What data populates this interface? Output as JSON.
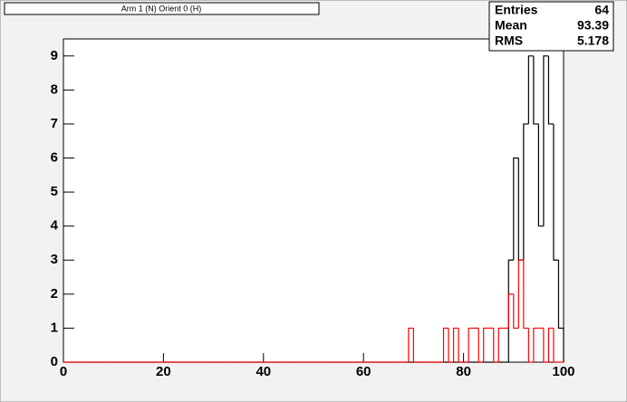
{
  "chart_data": {
    "type": "histogram",
    "title": "Arm 1 (N) Orient 0 (H)",
    "stats": {
      "labels": [
        "Entries",
        "Mean",
        "RMS"
      ],
      "values": [
        64,
        93.39,
        5.178
      ]
    },
    "bins": [
      0,
      1,
      2,
      3,
      4,
      5,
      6,
      7,
      8,
      9,
      10,
      11,
      12,
      13,
      14,
      15,
      16,
      17,
      18,
      19,
      20,
      21,
      22,
      23,
      24,
      25,
      26,
      27,
      28,
      29,
      30,
      31,
      32,
      33,
      34,
      35,
      36,
      37,
      38,
      39,
      40,
      41,
      42,
      43,
      44,
      45,
      46,
      47,
      48,
      49,
      50,
      51,
      52,
      53,
      54,
      55,
      56,
      57,
      58,
      59,
      60,
      61,
      62,
      63,
      64,
      65,
      66,
      67,
      68,
      69,
      70,
      71,
      72,
      73,
      74,
      75,
      76,
      77,
      78,
      79,
      80,
      81,
      82,
      83,
      84,
      85,
      86,
      87,
      88,
      89,
      90,
      91,
      92,
      93,
      94,
      95,
      96,
      97,
      98,
      99,
      100
    ],
    "series": [
      {
        "color": "#000000",
        "values": [
          0,
          0,
          0,
          0,
          0,
          0,
          0,
          0,
          0,
          0,
          0,
          0,
          0,
          0,
          0,
          0,
          0,
          0,
          0,
          0,
          0,
          0,
          0,
          0,
          0,
          0,
          0,
          0,
          0,
          0,
          0,
          0,
          0,
          0,
          0,
          0,
          0,
          0,
          0,
          0,
          0,
          0,
          0,
          0,
          0,
          0,
          0,
          0,
          0,
          0,
          0,
          0,
          0,
          0,
          0,
          0,
          0,
          0,
          0,
          0,
          0,
          0,
          0,
          0,
          0,
          0,
          0,
          0,
          0,
          0,
          0,
          0,
          0,
          0,
          0,
          0,
          0,
          0,
          0,
          0,
          0,
          0,
          0,
          0,
          0,
          0,
          0,
          0,
          0,
          3,
          6,
          3,
          7,
          9,
          7,
          4,
          9,
          7,
          3,
          1
        ]
      },
      {
        "color": "#ff0000",
        "values": [
          0,
          0,
          0,
          0,
          0,
          0,
          0,
          0,
          0,
          0,
          0,
          0,
          0,
          0,
          0,
          0,
          0,
          0,
          0,
          0,
          0,
          0,
          0,
          0,
          0,
          0,
          0,
          0,
          0,
          0,
          0,
          0,
          0,
          0,
          0,
          0,
          0,
          0,
          0,
          0,
          0,
          0,
          0,
          0,
          0,
          0,
          0,
          0,
          0,
          0,
          0,
          0,
          0,
          0,
          0,
          0,
          0,
          0,
          0,
          0,
          0,
          0,
          0,
          0,
          0,
          0,
          0,
          0,
          0,
          1,
          0,
          0,
          0,
          0,
          0,
          0,
          1,
          0,
          1,
          0,
          0,
          1,
          1,
          0,
          1,
          1,
          0,
          1,
          1,
          2,
          1,
          3,
          1,
          0,
          1,
          1,
          0,
          1,
          0,
          0
        ]
      }
    ],
    "xlim": [
      0,
      100
    ],
    "ylim": [
      0,
      9.5
    ],
    "xticks": [
      0,
      20,
      40,
      60,
      80,
      100
    ],
    "yticks": [
      0,
      1,
      2,
      3,
      4,
      5,
      6,
      7,
      8,
      9
    ]
  }
}
